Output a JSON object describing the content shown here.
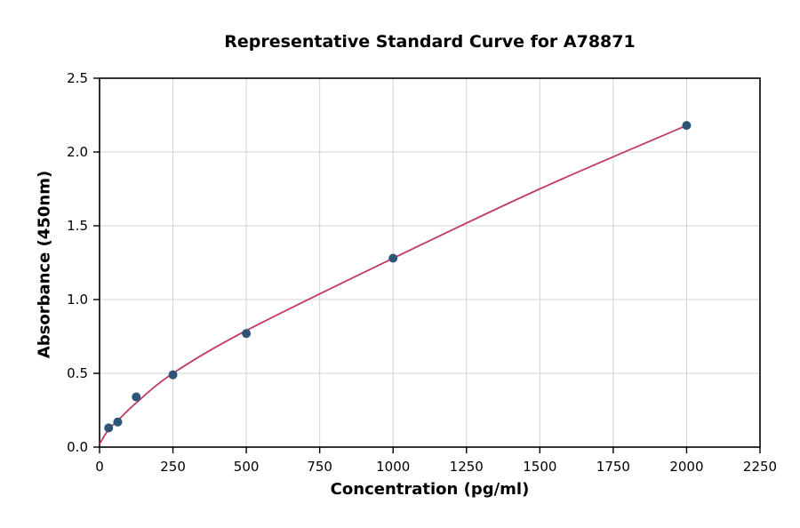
{
  "chart_data": {
    "type": "scatter",
    "title": "Representative Standard Curve for A78871",
    "xlabel": "Concentration (pg/ml)",
    "ylabel": "Absorbance (450nm)",
    "xlim": [
      0,
      2250
    ],
    "ylim": [
      0,
      2.5
    ],
    "x_ticks": [
      0,
      250,
      500,
      750,
      1000,
      1250,
      1500,
      1750,
      2000,
      2250
    ],
    "x_tick_labels": [
      "0",
      "250",
      "500",
      "750",
      "1000",
      "1250",
      "1500",
      "1750",
      "2000",
      "2250"
    ],
    "y_ticks": [
      0,
      0.5,
      1.0,
      1.5,
      2.0,
      2.5
    ],
    "y_tick_labels": [
      "0.0",
      "0.5",
      "1.0",
      "1.5",
      "2.0",
      "2.5"
    ],
    "grid": true,
    "legend": "none",
    "series": [
      {
        "name": "standard-points",
        "points": [
          {
            "x": 31,
            "y": 0.13
          },
          {
            "x": 62,
            "y": 0.17
          },
          {
            "x": 125,
            "y": 0.34
          },
          {
            "x": 250,
            "y": 0.49
          },
          {
            "x": 500,
            "y": 0.77
          },
          {
            "x": 1000,
            "y": 1.28
          },
          {
            "x": 2000,
            "y": 2.18
          }
        ]
      }
    ],
    "fit_curve_points": [
      [
        0,
        0.02
      ],
      [
        31,
        0.12
      ],
      [
        62,
        0.18
      ],
      [
        125,
        0.3
      ],
      [
        250,
        0.5
      ],
      [
        500,
        0.79
      ],
      [
        1000,
        1.28
      ],
      [
        1500,
        1.75
      ],
      [
        2000,
        2.18
      ]
    ],
    "colors": {
      "point": "#2e5577",
      "curve": "#c23b62",
      "grid": "#d3d3d3",
      "axis": "#000000",
      "background": "#ffffff"
    }
  }
}
